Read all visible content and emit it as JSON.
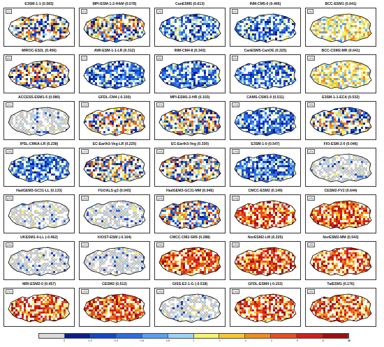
{
  "panels": [
    {
      "id": "(1)",
      "model": "E3SM-1-1",
      "score": "(0.583)",
      "scheme": "mixed"
    },
    {
      "id": "(2)",
      "model": "MPI-ESM-1-2-HAM",
      "score": "(0.578)",
      "scheme": "mixed"
    },
    {
      "id": "(3)",
      "model": "CanESM5",
      "score": "(0.613)",
      "scheme": "blue"
    },
    {
      "id": "(4)",
      "model": "INM-CM5-0",
      "score": "(0.466)",
      "scheme": "blue"
    },
    {
      "id": "(5)",
      "model": "BCC-ESM1",
      "score": "(0.641)",
      "scheme": "yellow"
    },
    {
      "id": "(6)",
      "model": "MIROC-ES2L",
      "score": "(0.456)",
      "scheme": "mixed"
    },
    {
      "id": "(7)",
      "model": "AWI-ESM-1-1-LR",
      "score": "(0.312)",
      "scheme": "blue"
    },
    {
      "id": "(8)",
      "model": "INM-CM4-8",
      "score": "(0.343)",
      "scheme": "blue"
    },
    {
      "id": "(9)",
      "model": "CanESM5-CanOE",
      "score": "(0.325)",
      "scheme": "blue"
    },
    {
      "id": "(10)",
      "model": "BCC-CSM2-MR",
      "score": "(0.641)",
      "scheme": "yellow"
    },
    {
      "id": "(11)",
      "model": "ACCESS-ESM1-5",
      "score": "(0.080)",
      "scheme": "hatch"
    },
    {
      "id": "(12)",
      "model": "GFDL-CM4",
      "score": "(-0.150)",
      "scheme": "mixed"
    },
    {
      "id": "(13)",
      "model": "MPI-ESM1-2-HR",
      "score": "(0.103)",
      "scheme": "mixed"
    },
    {
      "id": "(14)",
      "model": "CAMS-CSM1-0",
      "score": "(0.511)",
      "scheme": "blue"
    },
    {
      "id": "(15)",
      "model": "E3SM-1-1-ECA",
      "score": "(0.532)",
      "scheme": "mixed"
    },
    {
      "id": "(16)",
      "model": "IPSL-CM6A-LR",
      "score": "(0.238)",
      "scheme": "blue"
    },
    {
      "id": "(17)",
      "model": "EC-Earth3-Veg-LR",
      "score": "(0.225)",
      "scheme": "mixed"
    },
    {
      "id": "(18)",
      "model": "EC-Earth3-Veg",
      "score": "(0.330)",
      "scheme": "mixed"
    },
    {
      "id": "(19)",
      "model": "E3SM-1-0",
      "score": "(0.547)",
      "scheme": "blue"
    },
    {
      "id": "(20)",
      "model": "FIO-ESM-2-0",
      "score": "(0.046)",
      "scheme": "hatch"
    },
    {
      "id": "(21)",
      "model": "HadGEM3-GC31-LL",
      "score": "(0.133)",
      "scheme": "hatch"
    },
    {
      "id": "(22)",
      "model": "FGOALS-g3",
      "score": "(0.043)",
      "scheme": "hatch"
    },
    {
      "id": "(23)",
      "model": "HadGEM3-GC31-MM",
      "score": "(0.046)",
      "scheme": "mixed"
    },
    {
      "id": "(24)",
      "model": "CMCC-ESM2",
      "score": "(0.149)",
      "scheme": "red"
    },
    {
      "id": "(25)",
      "model": "CESM2-FV2",
      "score": "(0.644)",
      "scheme": "red"
    },
    {
      "id": "(26)",
      "model": "UKESM1-0-LL",
      "score": "(-0.462)",
      "scheme": "hatch"
    },
    {
      "id": "(27)",
      "model": "KIOST-ESM",
      "score": "(-0.104)",
      "scheme": "hatch"
    },
    {
      "id": "(28)",
      "model": "CMCC-CM2-SR5",
      "score": "(0.288)",
      "scheme": "red"
    },
    {
      "id": "(29)",
      "model": "NorESM2-LM",
      "score": "(0.325)",
      "scheme": "red"
    },
    {
      "id": "(30)",
      "model": "NorESM2-MM",
      "score": "(0.543)",
      "scheme": "red"
    },
    {
      "id": "(31)",
      "model": "MRI-ESM2-0",
      "score": "(0.457)",
      "scheme": "red"
    },
    {
      "id": "(32)",
      "model": "CESM2",
      "score": "(0.512)",
      "scheme": "red"
    },
    {
      "id": "(33)",
      "model": "GISS-E2-1-G",
      "score": "(-0.518)",
      "scheme": "hatch"
    },
    {
      "id": "(34)",
      "model": "GFDL-ESM4",
      "score": "(-0.153)",
      "scheme": "red"
    },
    {
      "id": "(35)",
      "model": "TaiESM1",
      "score": "(0.176)",
      "scheme": "red"
    }
  ],
  "legend": {
    "colors": [
      "#d9d9d9",
      "#0a1e8c",
      "#1446c8",
      "#2a6ee6",
      "#5aa0f0",
      "#9ad2f5",
      "#f5f06e",
      "#f5c832",
      "#f08c1e",
      "#e6501e",
      "#d21e1e",
      "#a00f0f"
    ],
    "ticks": [
      "0",
      "0.2",
      "0.4",
      "0.6",
      "0.8",
      "1",
      "2",
      "3",
      "4",
      "5",
      "6",
      "8",
      "10"
    ]
  }
}
